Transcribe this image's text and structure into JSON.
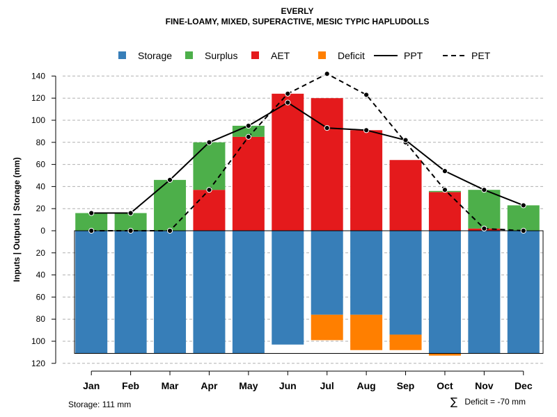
{
  "chart_data": {
    "type": "bar",
    "title": "EVERLY",
    "subtitle": "FINE-LOAMY, MIXED, SUPERACTIVE, MESIC TYPIC HAPLUDOLLS",
    "ylabel": "Inputs | Outputs | Storage    (mm)",
    "categories": [
      "Jan",
      "Feb",
      "Mar",
      "Apr",
      "May",
      "Jun",
      "Jul",
      "Aug",
      "Sep",
      "Oct",
      "Nov",
      "Dec"
    ],
    "ylim": [
      -120,
      145
    ],
    "yticks": [
      140,
      120,
      100,
      80,
      60,
      40,
      20,
      0,
      -20,
      -40,
      -60,
      -80,
      -100,
      -120
    ],
    "ytick_labels": [
      "140",
      "120",
      "100",
      "80",
      "60",
      "40",
      "20",
      "0",
      "20",
      "40",
      "60",
      "80",
      "100",
      "120"
    ],
    "grid": true,
    "storage_max": 111,
    "series": [
      {
        "name": "Storage",
        "color": "#377eb8",
        "values": [
          111,
          111,
          111,
          111,
          111,
          103,
          76,
          76,
          94,
          111,
          111,
          111
        ]
      },
      {
        "name": "Surplus",
        "color": "#4daf4a",
        "values": [
          16,
          16,
          46,
          43,
          10,
          0,
          0,
          0,
          0,
          1,
          35,
          23
        ]
      },
      {
        "name": "AET",
        "color": "#e41a1c",
        "values": [
          0,
          0,
          0,
          37,
          85,
          124,
          120,
          91,
          64,
          35,
          2,
          0
        ]
      },
      {
        "name": "Deficit",
        "color": "#ff7f00",
        "values": [
          0,
          0,
          0,
          0,
          0,
          0,
          23,
          32,
          14,
          2,
          0,
          0
        ]
      },
      {
        "name": "PPT",
        "color": "#000000",
        "style": "solid",
        "values": [
          16,
          16,
          46,
          80,
          95,
          116,
          93,
          91,
          82,
          54,
          37,
          23
        ]
      },
      {
        "name": "PET",
        "color": "#000000",
        "style": "dashed",
        "values": [
          0,
          0,
          0,
          37,
          85,
          124,
          142,
          123,
          80,
          37,
          2,
          0
        ]
      }
    ],
    "legend_position": "top",
    "footer_left": "Storage: 111 mm",
    "footer_right": "Deficit = -70 mm",
    "footer_symbol": "∑"
  }
}
